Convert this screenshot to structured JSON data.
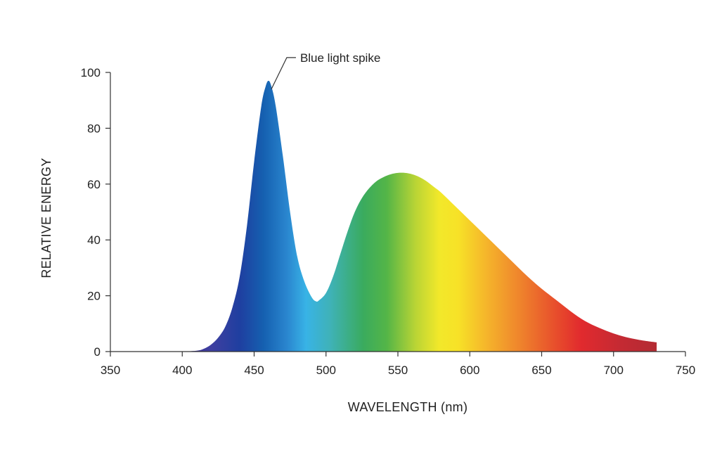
{
  "chart_data": {
    "type": "area",
    "xlabel": "WAVELENGTH (nm)",
    "ylabel": "RELATIVE ENERGY",
    "xlim": [
      350,
      750
    ],
    "ylim": [
      0,
      100
    ],
    "x_ticks": [
      350,
      400,
      450,
      500,
      550,
      600,
      650,
      700,
      750
    ],
    "y_ticks": [
      0,
      20,
      40,
      60,
      80,
      100
    ],
    "grid": false,
    "legend": "none",
    "fill": "visible-spectrum gradient",
    "series": [
      {
        "x": [
          400,
          410,
          415,
          420,
          425,
          430,
          435,
          440,
          445,
          450,
          455,
          458,
          460,
          462,
          465,
          470,
          475,
          480,
          485,
          490,
          493,
          495,
          500,
          505,
          510,
          515,
          520,
          525,
          530,
          535,
          540,
          545,
          550,
          555,
          560,
          565,
          570,
          575,
          580,
          590,
          600,
          610,
          620,
          630,
          640,
          650,
          660,
          670,
          680,
          690,
          700,
          710,
          720,
          730
        ],
        "y": [
          0,
          0.3,
          1,
          2.5,
          5,
          9,
          16,
          27,
          45,
          68,
          88,
          95,
          97,
          95,
          88,
          70,
          50,
          34,
          25,
          19.5,
          18,
          18.3,
          21,
          27,
          35,
          43,
          50,
          55,
          58.5,
          61,
          62.5,
          63.5,
          64,
          64,
          63.5,
          62.5,
          61,
          59,
          57,
          52,
          47,
          42,
          37,
          32,
          27,
          22.5,
          18.5,
          14.5,
          11,
          8.5,
          6.5,
          5,
          4,
          3.3
        ]
      }
    ],
    "annotations": [
      {
        "text": "Blue light spike",
        "x": 460,
        "y": 97
      }
    ]
  }
}
